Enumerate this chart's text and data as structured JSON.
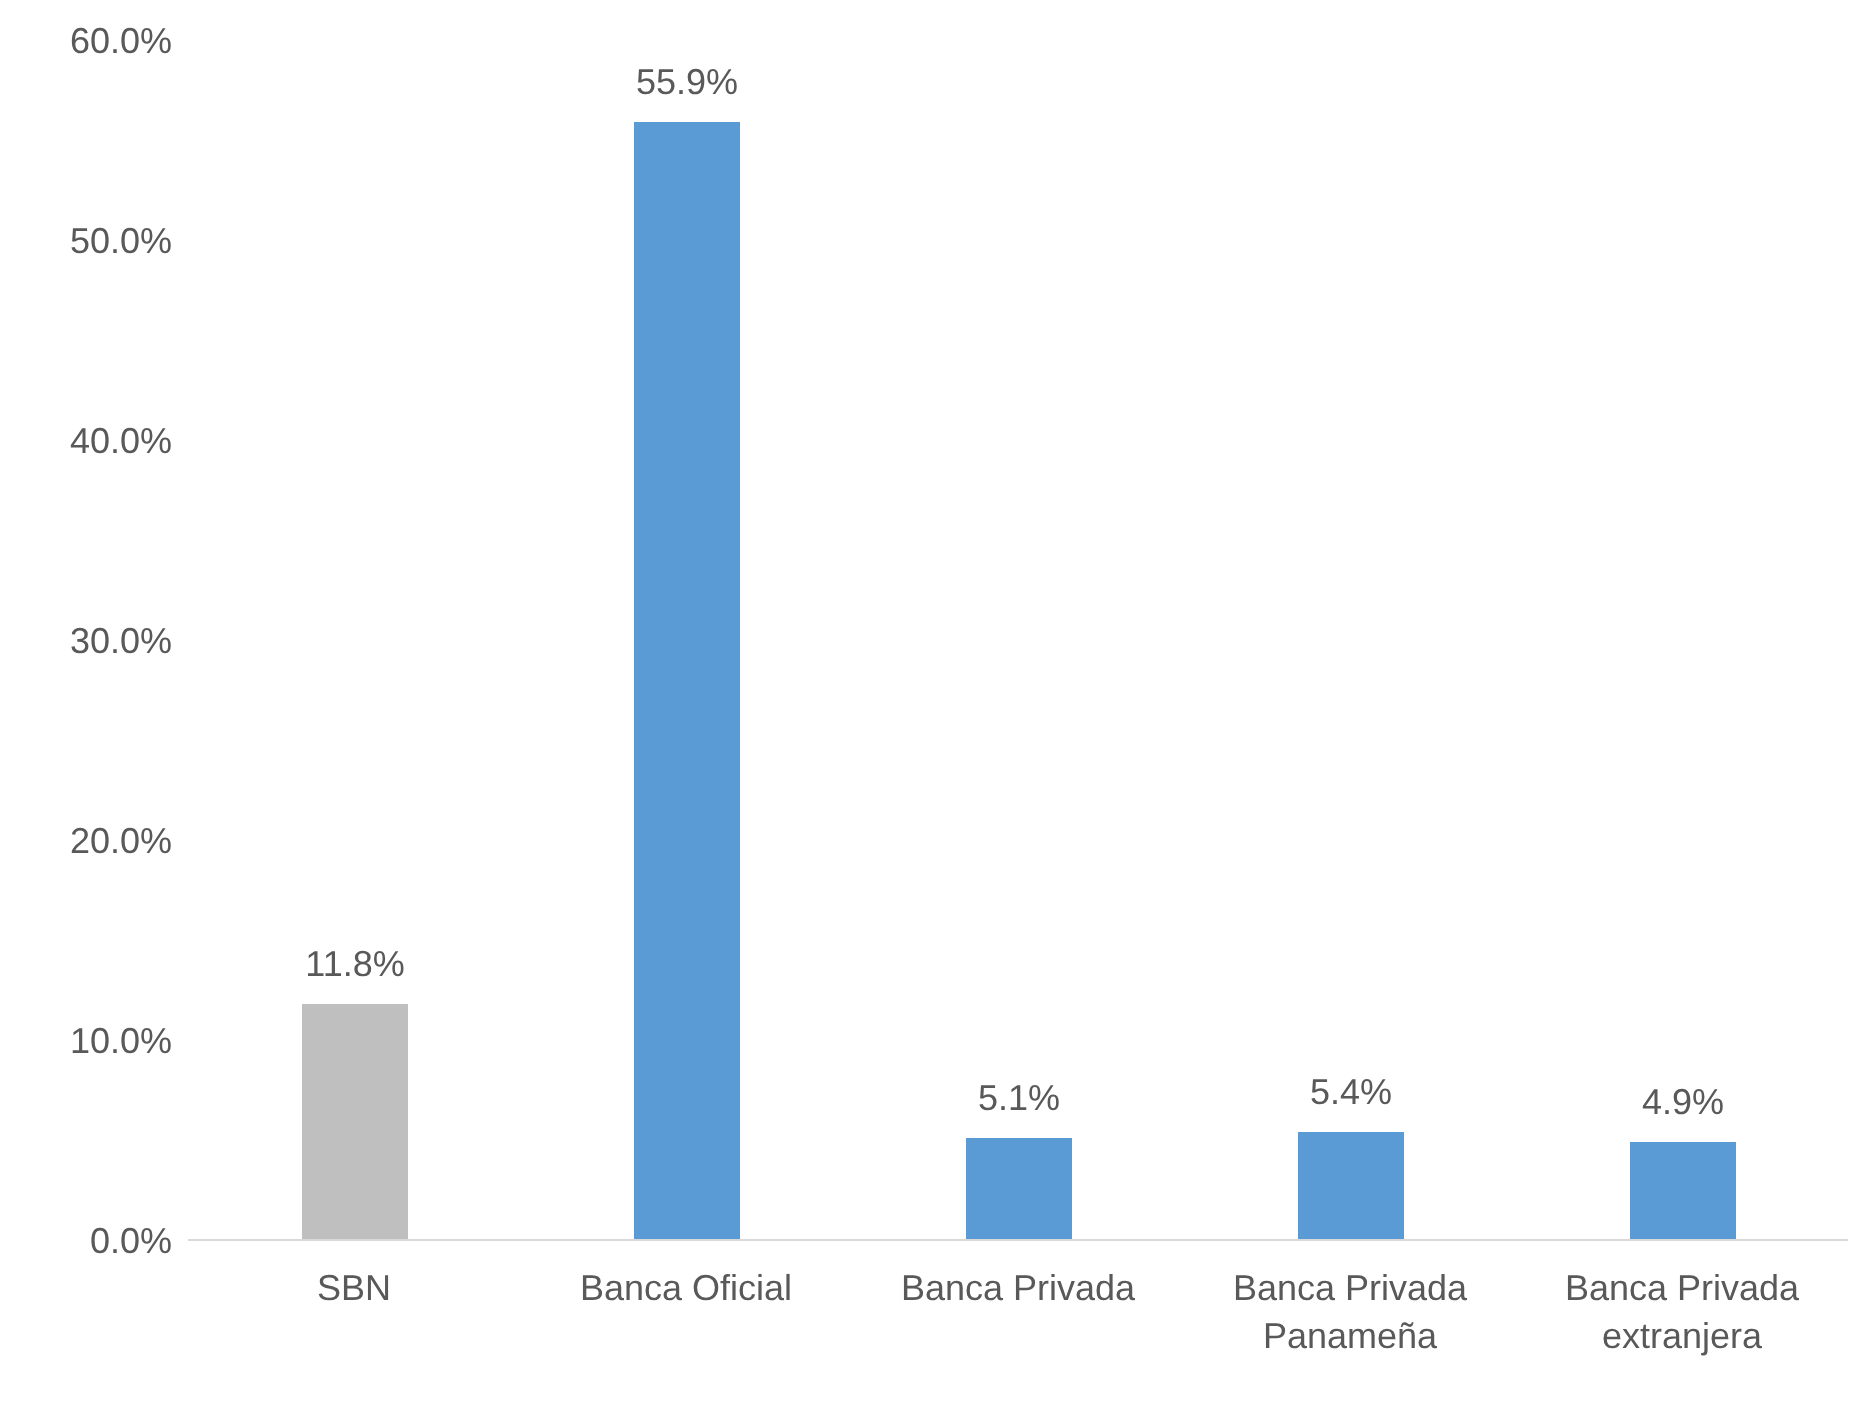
{
  "chart_data": {
    "type": "bar",
    "categories": [
      "SBN",
      "Banca Oficial",
      "Banca Privada",
      "Banca Privada Panameña",
      "Banca Privada extranjera"
    ],
    "values": [
      11.8,
      55.9,
      5.1,
      5.4,
      4.9
    ],
    "colors": [
      "#bfbfbf",
      "#5b9bd5",
      "#5b9bd5",
      "#5b9bd5",
      "#5b9bd5"
    ],
    "value_labels": [
      "11.8%",
      "55.9%",
      "5.1%",
      "5.4%",
      "4.9%"
    ],
    "ylim": [
      0,
      60
    ],
    "yticks": [
      {
        "value": 0,
        "label": "0.0%"
      },
      {
        "value": 10,
        "label": "10.0%"
      },
      {
        "value": 20,
        "label": "20.0%"
      },
      {
        "value": 30,
        "label": "30.0%"
      },
      {
        "value": 40,
        "label": "40.0%"
      },
      {
        "value": 50,
        "label": "50.0%"
      },
      {
        "value": 60,
        "label": "60.0%"
      }
    ],
    "grid": false,
    "legend": false
  }
}
